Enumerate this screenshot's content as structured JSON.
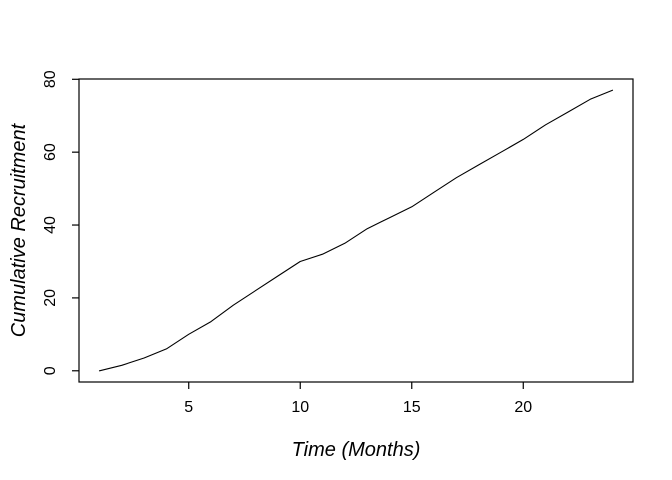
{
  "chart_data": {
    "type": "line",
    "title": "",
    "xlabel": "Time (Months)",
    "ylabel": "Cumulative Recruitment",
    "x": [
      1,
      2,
      3,
      4,
      5,
      6,
      7,
      8,
      9,
      10,
      11,
      12,
      13,
      14,
      15,
      16,
      17,
      18,
      19,
      20,
      21,
      22,
      23,
      24
    ],
    "y": [
      0,
      1.5,
      3.5,
      6,
      10,
      13.5,
      18,
      22,
      26,
      30,
      32,
      35,
      39,
      42,
      45,
      49,
      53,
      56.5,
      60,
      63.5,
      67.5,
      71,
      74.5,
      77
    ],
    "x_ticks": [
      5,
      10,
      15,
      20
    ],
    "y_ticks": [
      0,
      20,
      40,
      60,
      80
    ],
    "xlim": [
      0.08,
      24.92
    ],
    "ylim": [
      -3.08,
      80.08
    ],
    "grid": false,
    "legend": "none",
    "line_color": "#000000",
    "axis_color": "#000000",
    "text_color": "#000000",
    "background_color": "#ffffff"
  }
}
